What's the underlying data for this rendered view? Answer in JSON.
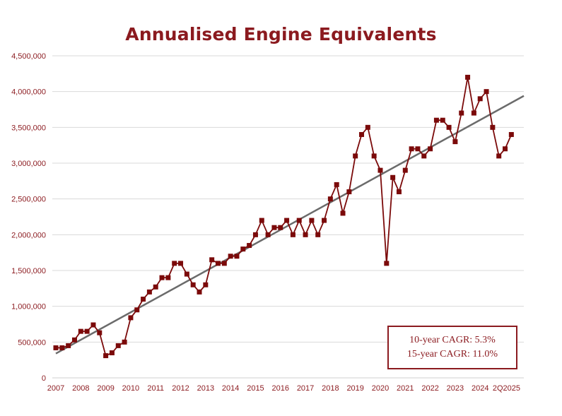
{
  "chart_data": {
    "type": "line",
    "title": "Annualised Engine Equivalents",
    "xlabel": "",
    "ylabel": "",
    "ylim": [
      0,
      4500000
    ],
    "xlim": [
      2007.0,
      2025.75
    ],
    "yticks": [
      0,
      500000,
      1000000,
      1500000,
      2000000,
      2500000,
      3000000,
      3500000,
      4000000,
      4500000
    ],
    "ytick_labels": [
      "0",
      "500,000",
      "1,000,000",
      "1,500,000",
      "2,000,000",
      "2,500,000",
      "3,000,000",
      "3,500,000",
      "4,000,000",
      "4,500,000"
    ],
    "xtick_labels": [
      "2007",
      "2008",
      "2009",
      "2010",
      "2011",
      "2012",
      "2013",
      "2014",
      "2015",
      "2016",
      "2017",
      "2018",
      "2019",
      "2020",
      "2021",
      "2022",
      "2023",
      "2024",
      "2Q2025"
    ],
    "grid": true,
    "colors": {
      "series": "#7b0a0a",
      "trend": "#6b6b6b",
      "text": "#8b1a1f"
    },
    "series": [
      {
        "values": [
          [
            2007.0,
            420000
          ],
          [
            2007.25,
            420000
          ],
          [
            2007.5,
            450000
          ],
          [
            2007.75,
            530000
          ],
          [
            2008.0,
            650000
          ],
          [
            2008.25,
            650000
          ],
          [
            2008.5,
            740000
          ],
          [
            2008.75,
            630000
          ],
          [
            2009.0,
            310000
          ],
          [
            2009.25,
            350000
          ],
          [
            2009.5,
            450000
          ],
          [
            2009.75,
            500000
          ],
          [
            2010.0,
            840000
          ],
          [
            2010.25,
            950000
          ],
          [
            2010.5,
            1100000
          ],
          [
            2010.75,
            1200000
          ],
          [
            2011.0,
            1270000
          ],
          [
            2011.25,
            1400000
          ],
          [
            2011.5,
            1400000
          ],
          [
            2011.75,
            1600000
          ],
          [
            2012.0,
            1600000
          ],
          [
            2012.25,
            1450000
          ],
          [
            2012.5,
            1300000
          ],
          [
            2012.75,
            1200000
          ],
          [
            2013.0,
            1300000
          ],
          [
            2013.25,
            1650000
          ],
          [
            2013.5,
            1600000
          ],
          [
            2013.75,
            1600000
          ],
          [
            2014.0,
            1700000
          ],
          [
            2014.25,
            1700000
          ],
          [
            2014.5,
            1800000
          ],
          [
            2014.75,
            1850000
          ],
          [
            2015.0,
            2000000
          ],
          [
            2015.25,
            2200000
          ],
          [
            2015.5,
            2000000
          ],
          [
            2015.75,
            2100000
          ],
          [
            2016.0,
            2100000
          ],
          [
            2016.25,
            2200000
          ],
          [
            2016.5,
            2000000
          ],
          [
            2016.75,
            2200000
          ],
          [
            2017.0,
            2000000
          ],
          [
            2017.25,
            2200000
          ],
          [
            2017.5,
            2000000
          ],
          [
            2017.75,
            2200000
          ],
          [
            2018.0,
            2500000
          ],
          [
            2018.25,
            2700000
          ],
          [
            2018.5,
            2300000
          ],
          [
            2018.75,
            2600000
          ],
          [
            2019.0,
            3100000
          ],
          [
            2019.25,
            3400000
          ],
          [
            2019.5,
            3500000
          ],
          [
            2019.75,
            3100000
          ],
          [
            2020.0,
            2900000
          ],
          [
            2020.25,
            1600000
          ],
          [
            2020.5,
            2800000
          ],
          [
            2020.75,
            2600000
          ],
          [
            2021.0,
            2900000
          ],
          [
            2021.25,
            3200000
          ],
          [
            2021.5,
            3200000
          ],
          [
            2021.75,
            3100000
          ],
          [
            2022.0,
            3200000
          ],
          [
            2022.25,
            3600000
          ],
          [
            2022.5,
            3600000
          ],
          [
            2022.75,
            3500000
          ],
          [
            2023.0,
            3300000
          ],
          [
            2023.25,
            3700000
          ],
          [
            2023.5,
            4200000
          ],
          [
            2023.75,
            3700000
          ],
          [
            2024.0,
            3900000
          ],
          [
            2024.25,
            4000000
          ],
          [
            2024.5,
            3500000
          ],
          [
            2024.75,
            3100000
          ],
          [
            2025.0,
            3200000
          ],
          [
            2025.25,
            3400000
          ]
        ]
      }
    ],
    "trendline": [
      [
        2007.0,
        340000
      ],
      [
        2025.75,
        3940000
      ]
    ],
    "annotations": [
      "10-year CAGR: 5.3%",
      "15-year CAGR: 11.0%"
    ]
  }
}
